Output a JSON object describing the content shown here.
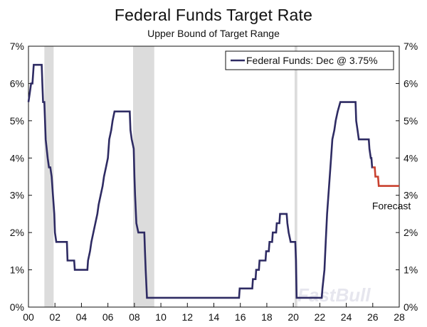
{
  "chart_data": {
    "type": "line",
    "title": "Federal Funds Target Rate",
    "subtitle": "Upper Bound of Target Range",
    "xlabel": "",
    "ylabel": "",
    "xlim": [
      2000,
      2028
    ],
    "ylim": [
      0,
      7
    ],
    "x_tick_labels": [
      "00",
      "02",
      "04",
      "06",
      "08",
      "10",
      "12",
      "14",
      "16",
      "18",
      "20",
      "22",
      "24",
      "26",
      "28"
    ],
    "x_tick_values": [
      2000,
      2002,
      2004,
      2006,
      2008,
      2010,
      2012,
      2014,
      2016,
      2018,
      2020,
      2022,
      2024,
      2026,
      2028
    ],
    "y_tick_labels": [
      "0%",
      "1%",
      "2%",
      "3%",
      "4%",
      "5%",
      "6%",
      "7%"
    ],
    "y_tick_values": [
      0,
      1,
      2,
      3,
      4,
      5,
      6,
      7
    ],
    "y_axis_both_sides": true,
    "grid": false,
    "legend_position": "top-right",
    "recession_shading": [
      [
        2001.2,
        2001.9
      ],
      [
        2007.9,
        2009.5
      ],
      [
        2020.1,
        2020.3
      ]
    ],
    "series": [
      {
        "name": "Federal Funds: Dec @ 3.75%",
        "color": "#2e2b63",
        "points": [
          [
            2000.0,
            5.5
          ],
          [
            2000.1,
            5.75
          ],
          [
            2000.2,
            6.0
          ],
          [
            2000.3,
            6.0
          ],
          [
            2000.4,
            6.5
          ],
          [
            2001.0,
            6.5
          ],
          [
            2001.05,
            6.0
          ],
          [
            2001.1,
            5.5
          ],
          [
            2001.2,
            5.5
          ],
          [
            2001.3,
            4.5
          ],
          [
            2001.45,
            4.0
          ],
          [
            2001.55,
            3.75
          ],
          [
            2001.65,
            3.75
          ],
          [
            2001.75,
            3.5
          ],
          [
            2001.85,
            3.0
          ],
          [
            2001.95,
            2.5
          ],
          [
            2002.0,
            2.0
          ],
          [
            2002.1,
            1.75
          ],
          [
            2002.9,
            1.75
          ],
          [
            2002.95,
            1.25
          ],
          [
            2003.45,
            1.25
          ],
          [
            2003.5,
            1.0
          ],
          [
            2004.45,
            1.0
          ],
          [
            2004.5,
            1.25
          ],
          [
            2004.65,
            1.5
          ],
          [
            2004.75,
            1.75
          ],
          [
            2004.9,
            2.0
          ],
          [
            2005.05,
            2.25
          ],
          [
            2005.2,
            2.5
          ],
          [
            2005.3,
            2.75
          ],
          [
            2005.45,
            3.0
          ],
          [
            2005.6,
            3.25
          ],
          [
            2005.7,
            3.5
          ],
          [
            2005.85,
            3.75
          ],
          [
            2006.0,
            4.0
          ],
          [
            2006.1,
            4.5
          ],
          [
            2006.25,
            4.75
          ],
          [
            2006.35,
            5.0
          ],
          [
            2006.5,
            5.25
          ],
          [
            2007.65,
            5.25
          ],
          [
            2007.7,
            4.75
          ],
          [
            2007.8,
            4.5
          ],
          [
            2007.95,
            4.25
          ],
          [
            2008.0,
            3.5
          ],
          [
            2008.05,
            3.0
          ],
          [
            2008.15,
            2.25
          ],
          [
            2008.3,
            2.0
          ],
          [
            2008.75,
            2.0
          ],
          [
            2008.8,
            1.5
          ],
          [
            2008.85,
            1.0
          ],
          [
            2008.95,
            0.25
          ],
          [
            2015.9,
            0.25
          ],
          [
            2015.95,
            0.5
          ],
          [
            2016.9,
            0.5
          ],
          [
            2016.95,
            0.75
          ],
          [
            2017.15,
            0.75
          ],
          [
            2017.2,
            1.0
          ],
          [
            2017.4,
            1.0
          ],
          [
            2017.45,
            1.25
          ],
          [
            2017.9,
            1.25
          ],
          [
            2017.95,
            1.5
          ],
          [
            2018.15,
            1.5
          ],
          [
            2018.2,
            1.75
          ],
          [
            2018.4,
            1.75
          ],
          [
            2018.45,
            2.0
          ],
          [
            2018.7,
            2.0
          ],
          [
            2018.75,
            2.25
          ],
          [
            2018.95,
            2.25
          ],
          [
            2019.0,
            2.5
          ],
          [
            2019.5,
            2.5
          ],
          [
            2019.55,
            2.25
          ],
          [
            2019.65,
            2.0
          ],
          [
            2019.8,
            1.75
          ],
          [
            2020.15,
            1.75
          ],
          [
            2020.2,
            1.25
          ],
          [
            2020.25,
            0.25
          ],
          [
            2022.15,
            0.25
          ],
          [
            2022.2,
            0.5
          ],
          [
            2022.35,
            1.0
          ],
          [
            2022.45,
            1.75
          ],
          [
            2022.55,
            2.5
          ],
          [
            2022.7,
            3.25
          ],
          [
            2022.85,
            4.0
          ],
          [
            2022.95,
            4.5
          ],
          [
            2023.1,
            4.75
          ],
          [
            2023.2,
            5.0
          ],
          [
            2023.35,
            5.25
          ],
          [
            2023.55,
            5.5
          ],
          [
            2024.7,
            5.5
          ],
          [
            2024.75,
            5.0
          ],
          [
            2024.85,
            4.75
          ],
          [
            2024.95,
            4.5
          ],
          [
            2025.7,
            4.5
          ],
          [
            2025.75,
            4.25
          ],
          [
            2025.85,
            4.0
          ],
          [
            2025.9,
            4.0
          ],
          [
            2025.95,
            3.75
          ],
          [
            2026.0,
            3.75
          ]
        ]
      },
      {
        "name": "Forecast",
        "color": "#c9412f",
        "points": [
          [
            2026.0,
            3.75
          ],
          [
            2026.15,
            3.75
          ],
          [
            2026.2,
            3.5
          ],
          [
            2026.4,
            3.5
          ],
          [
            2026.45,
            3.25
          ],
          [
            2028.0,
            3.25
          ]
        ]
      }
    ],
    "annotations": [
      {
        "text": "Forecast",
        "x": 2025.95,
        "y": 2.62
      }
    ],
    "watermark": "FastBull"
  }
}
